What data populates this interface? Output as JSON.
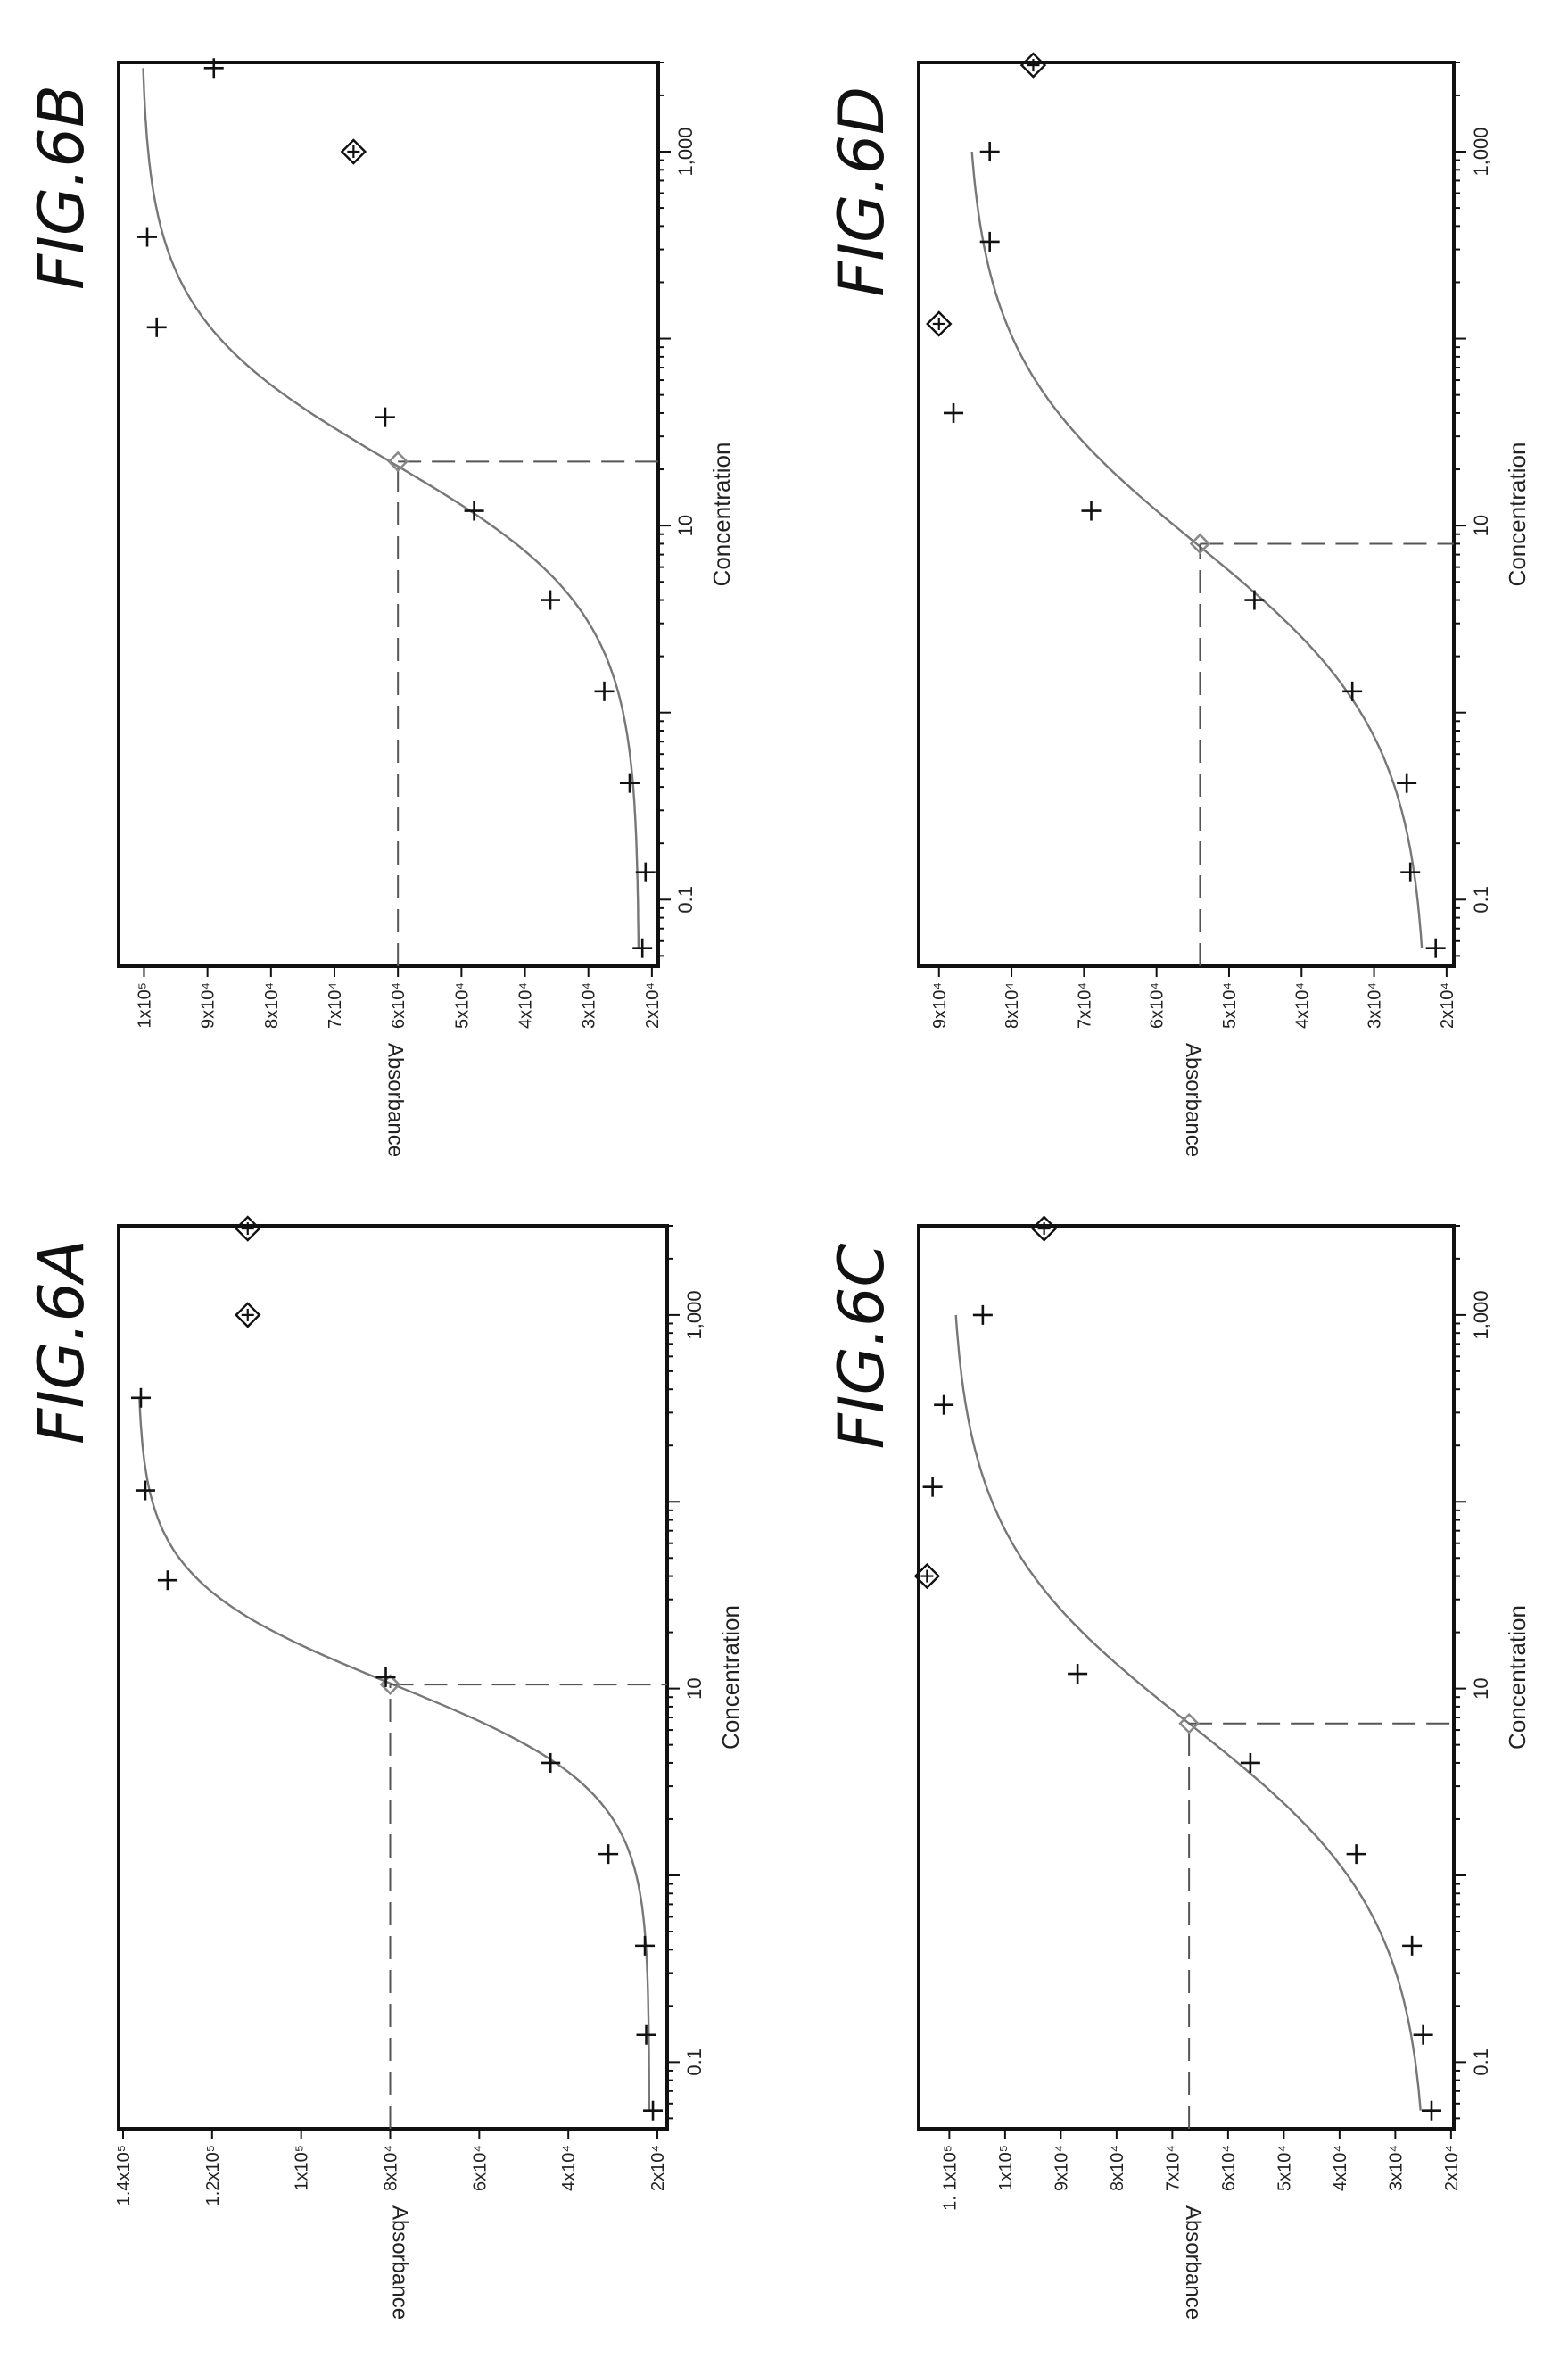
{
  "chart_data": [
    {
      "id": "6A",
      "type": "scatter",
      "figure_label": "FIG.6A",
      "xlabel": "Concentration",
      "ylabel": "Absorbance",
      "x_scale": "log",
      "xlim": [
        0.044,
        3000
      ],
      "ylim": [
        17800,
        141000
      ],
      "x_ticks": [
        {
          "value": 0.1,
          "label": "0.1"
        },
        {
          "value": 10,
          "label": "10"
        },
        {
          "value": 1000,
          "label": "1,000"
        }
      ],
      "y_ticks": [
        {
          "value": 20000,
          "label": "2x10⁴"
        },
        {
          "value": 40000,
          "label": "4x10⁴"
        },
        {
          "value": 60000,
          "label": "6x10⁴"
        },
        {
          "value": 80000,
          "label": "8x10⁴"
        },
        {
          "value": 100000,
          "label": "1x10⁵"
        },
        {
          "value": 120000,
          "label": "1.2x10⁵"
        },
        {
          "value": 140000,
          "label": "1.4x10⁵"
        }
      ],
      "fit_params": {
        "bottom": 21800,
        "top": 136800,
        "ec50": 10.5,
        "hill": 1.55,
        "xmin": 0.055,
        "xmax": 360
      },
      "ec50_marker": {
        "x": 10.5,
        "y": 80000
      },
      "data_points": [
        {
          "x": 0.055,
          "y": 21000
        },
        {
          "x": 0.14,
          "y": 22500
        },
        {
          "x": 0.42,
          "y": 22800
        },
        {
          "x": 1.3,
          "y": 31000
        },
        {
          "x": 4.0,
          "y": 44000
        },
        {
          "x": 11.5,
          "y": 81000
        },
        {
          "x": 38,
          "y": 130000
        },
        {
          "x": 115,
          "y": 135000
        },
        {
          "x": 360,
          "y": 136000
        }
      ],
      "outliers": [
        {
          "x": 1000,
          "y": 112000
        },
        {
          "x": 2900,
          "y": 112000
        }
      ]
    },
    {
      "id": "6B",
      "type": "scatter",
      "figure_label": "FIG.6B",
      "xlabel": "Concentration",
      "ylabel": "Absorbance",
      "x_scale": "log",
      "xlim": [
        0.044,
        3000
      ],
      "ylim": [
        19000,
        104000
      ],
      "x_ticks": [
        {
          "value": 0.1,
          "label": "0.1"
        },
        {
          "value": 10,
          "label": "10"
        },
        {
          "value": 1000,
          "label": "1,000"
        }
      ],
      "y_ticks": [
        {
          "value": 20000,
          "label": "2x10⁴"
        },
        {
          "value": 30000,
          "label": "3x10⁴"
        },
        {
          "value": 40000,
          "label": "4x10⁴"
        },
        {
          "value": 50000,
          "label": "5x10⁴"
        },
        {
          "value": 60000,
          "label": "6x10⁴"
        },
        {
          "value": 70000,
          "label": "7x10⁴"
        },
        {
          "value": 80000,
          "label": "8x10⁴"
        },
        {
          "value": 90000,
          "label": "9x10⁴"
        },
        {
          "value": 100000,
          "label": "1x10⁵"
        }
      ],
      "fit_params": {
        "bottom": 22000,
        "top": 100500,
        "ec50": 22,
        "hill": 1.1,
        "xmin": 0.055,
        "xmax": 2800
      },
      "ec50_marker": {
        "x": 22,
        "y": 60000
      },
      "data_points": [
        {
          "x": 0.055,
          "y": 21500
        },
        {
          "x": 0.14,
          "y": 21000
        },
        {
          "x": 0.42,
          "y": 23500
        },
        {
          "x": 1.3,
          "y": 27500
        },
        {
          "x": 4.0,
          "y": 36000
        },
        {
          "x": 12,
          "y": 48000
        },
        {
          "x": 38,
          "y": 62000
        },
        {
          "x": 115,
          "y": 98000
        },
        {
          "x": 350,
          "y": 99500
        },
        {
          "x": 2800,
          "y": 89000
        }
      ],
      "outliers": [
        {
          "x": 1000,
          "y": 67000
        }
      ]
    },
    {
      "id": "6C",
      "type": "scatter",
      "figure_label": "FIG.6C",
      "xlabel": "Concentration",
      "ylabel": "Absorbance",
      "x_scale": "log",
      "xlim": [
        0.044,
        3000
      ],
      "ylim": [
        19500,
        115500
      ],
      "x_ticks": [
        {
          "value": 0.1,
          "label": "0.1"
        },
        {
          "value": 10,
          "label": "10"
        },
        {
          "value": 1000,
          "label": "1,000"
        }
      ],
      "y_ticks": [
        {
          "value": 20000,
          "label": "2x10⁴"
        },
        {
          "value": 30000,
          "label": "3x10⁴"
        },
        {
          "value": 40000,
          "label": "4x10⁴"
        },
        {
          "value": 50000,
          "label": "5x10⁴"
        },
        {
          "value": 60000,
          "label": "6x10⁴"
        },
        {
          "value": 70000,
          "label": "7x10⁴"
        },
        {
          "value": 80000,
          "label": "8x10⁴"
        },
        {
          "value": 90000,
          "label": "9x10⁴"
        },
        {
          "value": 100000,
          "label": "1x10⁵"
        },
        {
          "value": 110000,
          "label": "1. 1x10⁵"
        }
      ],
      "fit_params": {
        "bottom": 24000,
        "top": 110000,
        "ec50": 6.5,
        "hill": 0.85,
        "xmin": 0.055,
        "xmax": 1000
      },
      "ec50_marker": {
        "x": 6.5,
        "y": 67000
      },
      "data_points": [
        {
          "x": 0.055,
          "y": 23500
        },
        {
          "x": 0.14,
          "y": 25000
        },
        {
          "x": 0.42,
          "y": 27000
        },
        {
          "x": 1.3,
          "y": 37000
        },
        {
          "x": 4.0,
          "y": 56000
        },
        {
          "x": 12,
          "y": 87000
        },
        {
          "x": 120,
          "y": 113000
        },
        {
          "x": 330,
          "y": 111000
        },
        {
          "x": 1000,
          "y": 104000
        }
      ],
      "outliers": [
        {
          "x": 40,
          "y": 114000
        },
        {
          "x": 2900,
          "y": 93000
        }
      ]
    },
    {
      "id": "6D",
      "type": "scatter",
      "figure_label": "FIG.6D",
      "xlabel": "Concentration",
      "ylabel": "Absorbance",
      "x_scale": "log",
      "xlim": [
        0.044,
        3000
      ],
      "ylim": [
        19000,
        92800
      ],
      "x_ticks": [
        {
          "value": 0.1,
          "label": "0.1"
        },
        {
          "value": 10,
          "label": "10"
        },
        {
          "value": 1000,
          "label": "1,000"
        }
      ],
      "y_ticks": [
        {
          "value": 20000,
          "label": "2x10⁴"
        },
        {
          "value": 30000,
          "label": "3x10⁴"
        },
        {
          "value": 40000,
          "label": "4x10⁴"
        },
        {
          "value": 50000,
          "label": "5x10⁴"
        },
        {
          "value": 60000,
          "label": "6x10⁴"
        },
        {
          "value": 70000,
          "label": "7x10⁴"
        },
        {
          "value": 80000,
          "label": "8x10⁴"
        },
        {
          "value": 90000,
          "label": "9x10⁴"
        }
      ],
      "fit_params": {
        "bottom": 22500,
        "top": 86500,
        "ec50": 8.0,
        "hill": 0.85,
        "xmin": 0.055,
        "xmax": 1000
      },
      "ec50_marker": {
        "x": 8.0,
        "y": 54000
      },
      "data_points": [
        {
          "x": 0.055,
          "y": 21500
        },
        {
          "x": 0.14,
          "y": 25000
        },
        {
          "x": 0.42,
          "y": 25500
        },
        {
          "x": 1.3,
          "y": 33000
        },
        {
          "x": 4.0,
          "y": 46500
        },
        {
          "x": 12,
          "y": 69000
        },
        {
          "x": 40,
          "y": 88000
        },
        {
          "x": 330,
          "y": 83000
        },
        {
          "x": 1000,
          "y": 83000
        }
      ],
      "outliers": [
        {
          "x": 120,
          "y": 90000
        },
        {
          "x": 2900,
          "y": 77000
        }
      ]
    }
  ]
}
